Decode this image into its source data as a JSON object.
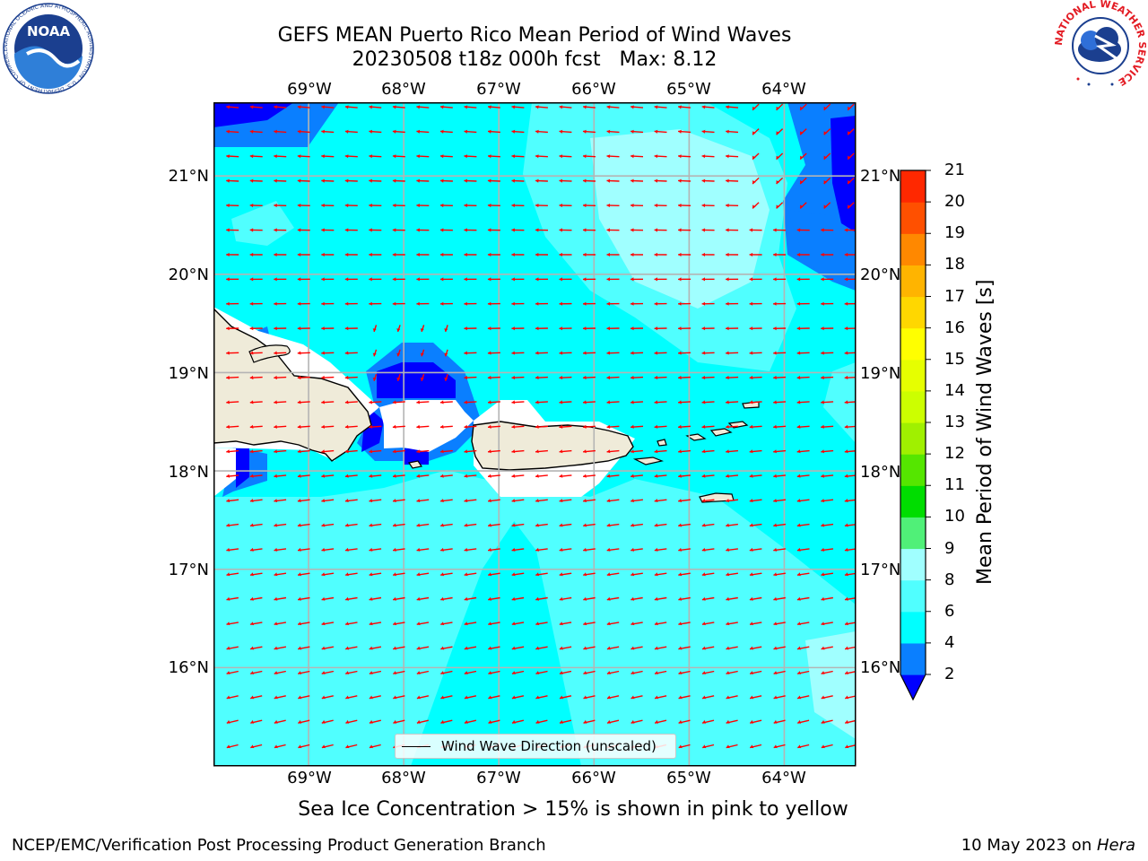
{
  "title": {
    "line1": "GEFS MEAN Puerto Rico Mean Period of Wind Waves",
    "line2": "20230508 t18z 000h fcst   Max: 8.12"
  },
  "map": {
    "lon_labels": [
      "69°W",
      "68°W",
      "67°W",
      "66°W",
      "65°W",
      "64°W"
    ],
    "lat_labels": [
      "21°N",
      "20°N",
      "19°N",
      "18°N",
      "17°N",
      "16°N"
    ],
    "lon_range": [
      -70,
      -63.25
    ],
    "lat_range": [
      15,
      21.75
    ],
    "colors": {
      "land": "#efebd9",
      "ocean_4_6": "#00ffff",
      "ocean_6_8": "#50ffff",
      "ocean_8_9": "#a0ffff",
      "ocean_3_4": "#0a7fff",
      "ocean_2_3": "#0000ff",
      "arrow": "#ff0000",
      "grid": "#b4b4b4"
    }
  },
  "legend": {
    "label": "Wind Wave Direction (unscaled)"
  },
  "colorbar": {
    "title": "Mean Period of Wind Waves [s]",
    "ticks": [
      "2",
      "4",
      "6",
      "8",
      "9",
      "10",
      "11",
      "12",
      "13",
      "14",
      "15",
      "16",
      "17",
      "18",
      "19",
      "20",
      "21"
    ],
    "colors": [
      "#0000ff",
      "#0a7fff",
      "#00ffff",
      "#50ffff",
      "#a0ffff",
      "#50f078",
      "#00dd00",
      "#55e600",
      "#a0f000",
      "#ccff00",
      "#e6ff00",
      "#ffff00",
      "#ffd700",
      "#ffb400",
      "#ff8800",
      "#ff5000",
      "#ff2800",
      "#ff0000"
    ]
  },
  "footer": {
    "note": "Sea Ice Concentration > 15% is shown in pink to yellow",
    "left": "NCEP/EMC/Verification Post Processing Product Generation Branch",
    "date": "10 May 2023 on ",
    "machine": "Hera"
  },
  "logos": {
    "left": "NOAA",
    "left_ring": "NATIONAL OCEANIC AND ATMOSPHERIC ADMINISTRATION · U.S. DEPARTMENT OF COMMERCE",
    "right_ring": "NATIONAL WEATHER SERVICE"
  }
}
